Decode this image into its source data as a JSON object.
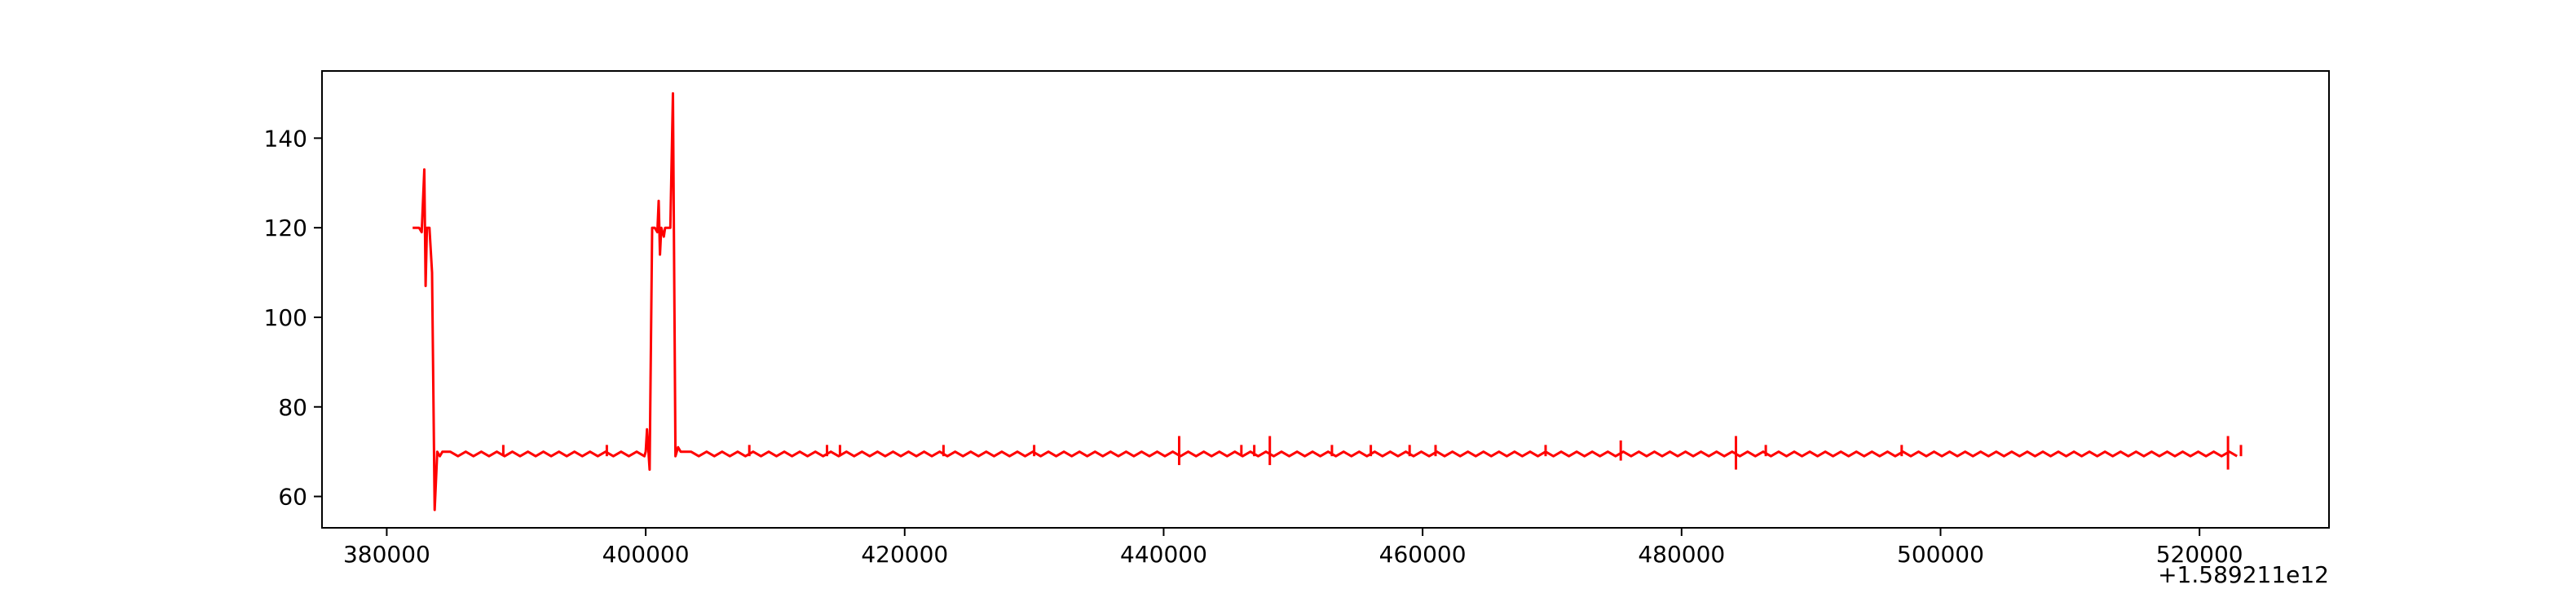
{
  "chart_data": {
    "type": "line",
    "title": "",
    "xlabel": "",
    "ylabel": "",
    "x_offset_label": "+1.589211e12",
    "xlim": [
      375000,
      530000
    ],
    "ylim": [
      53,
      155
    ],
    "grid": false,
    "x_ticks": [
      380000,
      400000,
      420000,
      440000,
      460000,
      480000,
      500000,
      520000
    ],
    "x_tick_labels": [
      "380000",
      "400000",
      "420000",
      "440000",
      "460000",
      "480000",
      "500000",
      "520000"
    ],
    "y_ticks": [
      60,
      80,
      100,
      120,
      140
    ],
    "y_tick_labels": [
      "60",
      "80",
      "100",
      "120",
      "140"
    ],
    "series": [
      {
        "color": "#ff0000",
        "baseline": 70,
        "oscillation_low": 69,
        "oscillation_step": 600,
        "oscillation_range": [
          383600,
          523200
        ],
        "oscillation_gap": [
          400000,
          402600
        ],
        "x": [
          382000,
          382500,
          382700,
          382900,
          383000,
          383100,
          383300,
          383500,
          383700,
          383900,
          384100,
          384300,
          400000,
          400100,
          400300,
          400500,
          400700,
          400900,
          401000,
          401100,
          401200,
          401400,
          401500,
          401700,
          401900,
          402100,
          402300,
          402500,
          402700,
          402900
        ],
        "y": [
          120,
          120,
          119,
          133,
          107,
          120,
          120,
          110,
          57,
          70,
          69,
          70,
          70,
          75,
          66,
          120,
          120,
          119,
          126,
          114,
          120,
          118,
          120,
          120,
          120,
          150,
          69,
          71,
          70,
          70
        ]
      }
    ],
    "spikes": [
      {
        "x": 389000,
        "y": 71.5
      },
      {
        "x": 397000,
        "y": 71.5
      },
      {
        "x": 408000,
        "y": 71.5
      },
      {
        "x": 414000,
        "y": 71.5
      },
      {
        "x": 415000,
        "y": 71.5
      },
      {
        "x": 423000,
        "y": 71.5
      },
      {
        "x": 430000,
        "y": 71.5
      },
      {
        "x": 441200,
        "y": 73.5,
        "low": 67
      },
      {
        "x": 446000,
        "y": 71.5
      },
      {
        "x": 447000,
        "y": 71.5
      },
      {
        "x": 448200,
        "y": 73.5,
        "low": 67
      },
      {
        "x": 453000,
        "y": 71.5
      },
      {
        "x": 456000,
        "y": 71.5
      },
      {
        "x": 459000,
        "y": 71.5
      },
      {
        "x": 461000,
        "y": 71.5
      },
      {
        "x": 469500,
        "y": 71.5
      },
      {
        "x": 475300,
        "y": 72.5,
        "low": 68
      },
      {
        "x": 484200,
        "y": 73.5,
        "low": 66
      },
      {
        "x": 486500,
        "y": 71.5
      },
      {
        "x": 497000,
        "y": 71.5
      },
      {
        "x": 522200,
        "y": 73.5,
        "low": 66
      },
      {
        "x": 523200,
        "y": 71.5
      }
    ]
  }
}
